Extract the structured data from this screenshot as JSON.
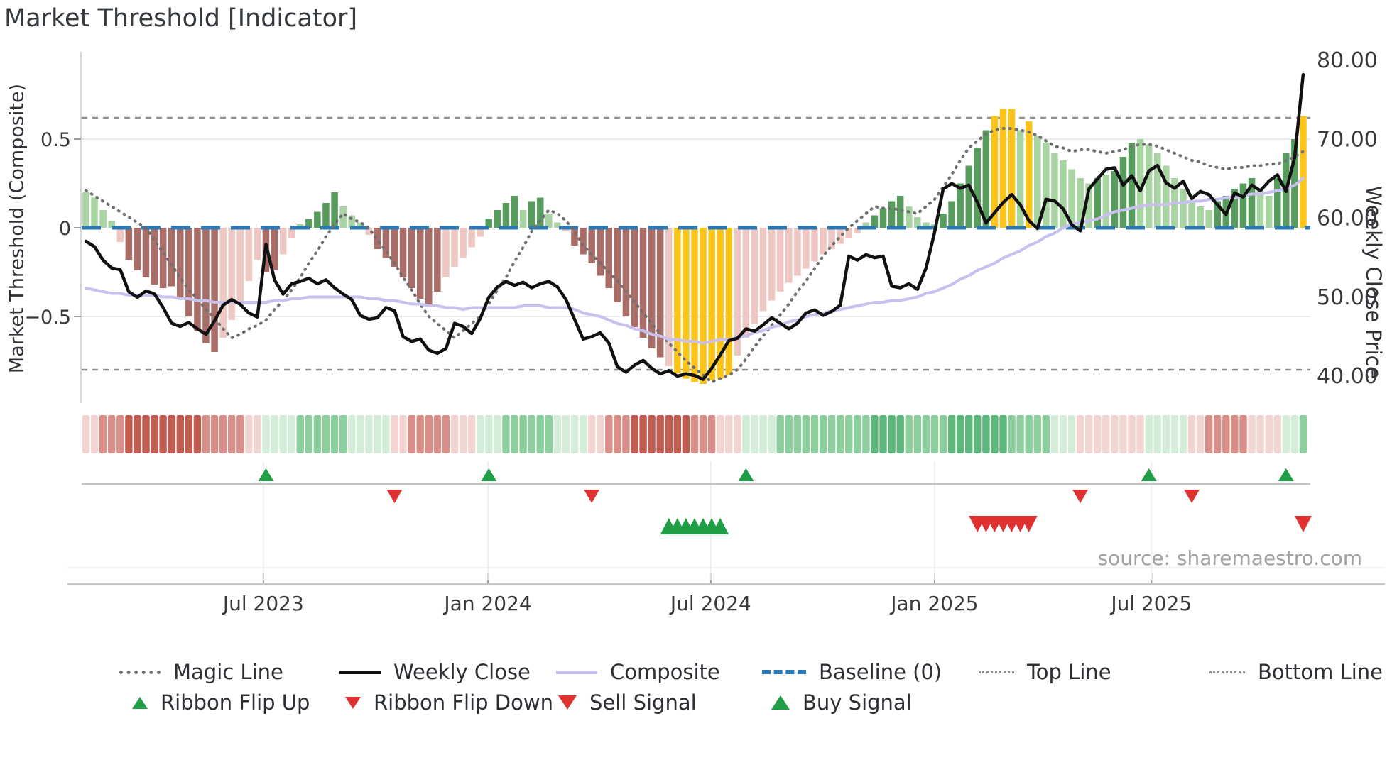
{
  "title": "Market Threshold [Indicator]",
  "source": "source: sharemaestro.com",
  "axes": {
    "left_label": "Market Threshold (Composite)",
    "right_label": "Weekly Close Price",
    "left_ticks": [
      {
        "label": "0.5",
        "value": 0.5
      },
      {
        "label": "0",
        "value": 0
      },
      {
        "label": "−0.5",
        "value": -0.5
      }
    ],
    "right_ticks": [
      {
        "label": "80.00",
        "value": 80
      },
      {
        "label": "70.00",
        "value": 70
      },
      {
        "label": "60.00",
        "value": 60
      },
      {
        "label": "50.00",
        "value": 50
      },
      {
        "label": "40.00",
        "value": 40
      }
    ],
    "x_ticks": [
      {
        "label": "Jul 2023",
        "week": 20.7
      },
      {
        "label": "Jan 2024",
        "week": 46.9
      },
      {
        "label": "Jul 2024",
        "week": 72.9
      },
      {
        "label": "Jan 2025",
        "week": 99.0
      },
      {
        "label": "Jul 2025",
        "week": 124.3
      }
    ]
  },
  "colors": {
    "bar": {
      "G": "#a7d4a1",
      "D": "#579c5c",
      "P": "#eec7c3",
      "R": "#ab6d68",
      "Y": "#fcc419"
    },
    "ribbon": {
      "-3": "#c25b50",
      "-2": "#d98f87",
      "-1": "#f2d4d1",
      "1": "#d3edd8",
      "2": "#8ccf9d",
      "3": "#5cb87b"
    },
    "weekly_close": "#111111",
    "composite_line": "#c8c0ee",
    "magic_line": "#6f6f6f",
    "baseline": "#2a7ab8",
    "top_bottom": "#8f8f8f",
    "flip_up": "#1f9e45",
    "flip_down": "#e03131",
    "buy": "#1f9e45",
    "sell": "#e03131",
    "grid": "#e9ecef"
  },
  "chart_data": {
    "type": "mixed bar+line, dual axis, weekly",
    "title": "Market Threshold [Indicator]",
    "n_weeks": 143,
    "ylim_composite": [
      -0.95,
      0.95
    ],
    "ylim_price": [
      38,
      81
    ],
    "reference_lines": {
      "baseline": 0,
      "top_line": 0.62,
      "bottom_line": -0.8
    },
    "legend_position": "bottom",
    "grid": "horizontal at ±0.5 only",
    "series": [
      {
        "name": "Threshold Bars",
        "type": "bar",
        "axis": "composite",
        "values": [
          0.2,
          0.17,
          0.1,
          0.04,
          -0.08,
          -0.18,
          -0.24,
          -0.28,
          -0.32,
          -0.34,
          -0.33,
          -0.4,
          -0.5,
          -0.58,
          -0.65,
          -0.7,
          -0.62,
          -0.52,
          -0.42,
          -0.3,
          -0.18,
          -0.25,
          -0.24,
          -0.15,
          -0.06,
          0.02,
          0.05,
          0.09,
          0.14,
          0.2,
          0.12,
          0.07,
          0.03,
          -0.04,
          -0.12,
          -0.17,
          -0.22,
          -0.28,
          -0.34,
          -0.4,
          -0.44,
          -0.36,
          -0.28,
          -0.22,
          -0.17,
          -0.11,
          -0.05,
          0.05,
          0.1,
          0.14,
          0.18,
          0.1,
          0.15,
          0.17,
          0.08,
          0.03,
          -0.02,
          -0.1,
          -0.15,
          -0.2,
          -0.27,
          -0.34,
          -0.42,
          -0.5,
          -0.56,
          -0.62,
          -0.68,
          -0.73,
          -0.78,
          -0.82,
          -0.85,
          -0.87,
          -0.88,
          -0.86,
          -0.85,
          -0.83,
          -0.72,
          -0.62,
          -0.54,
          -0.47,
          -0.41,
          -0.36,
          -0.31,
          -0.27,
          -0.23,
          -0.19,
          -0.15,
          -0.12,
          -0.09,
          -0.06,
          -0.03,
          0.03,
          0.07,
          0.11,
          0.15,
          0.18,
          0.12,
          0.06,
          0.03,
          0.02,
          0.08,
          0.15,
          0.25,
          0.35,
          0.45,
          0.55,
          0.63,
          0.67,
          0.67,
          0.55,
          0.6,
          0.52,
          0.48,
          0.42,
          0.38,
          0.33,
          0.28,
          0.25,
          0.28,
          0.3,
          0.32,
          0.4,
          0.48,
          0.5,
          0.47,
          0.42,
          0.35,
          0.28,
          0.22,
          0.15,
          0.12,
          0.1,
          0.15,
          0.18,
          0.22,
          0.25,
          0.28,
          0.22,
          0.18,
          0.28,
          0.42,
          0.5,
          0.63
        ],
        "color_codes": "GGGGPRRRRRRRRRRRPPPPPRRPPGDDDDGGGPRRRRRRRRPPPPPDDDDGDDGGPRRRRRRRRRRRPYYYYYYYPPPPPPPPPPPPPPPGDDDDGGGGDDDDDDYYYGYGGGGGGGDGDDDGGGGGGGGGDDDDDGGDDDY"
      },
      {
        "name": "Weekly Close",
        "type": "line",
        "axis": "price",
        "values": [
          57.0,
          56.3,
          54.6,
          53.6,
          53.4,
          50.6,
          49.9,
          50.7,
          50.3,
          48.6,
          46.6,
          46.2,
          46.7,
          45.9,
          45.2,
          46.9,
          48.9,
          49.6,
          49.0,
          47.9,
          47.4,
          56.6,
          52.1,
          50.3,
          51.6,
          51.9,
          52.3,
          51.6,
          52.1,
          51.1,
          50.3,
          49.6,
          47.6,
          47.1,
          47.3,
          48.6,
          48.2,
          44.9,
          44.3,
          44.6,
          43.2,
          42.8,
          43.4,
          46.6,
          46.2,
          45.3,
          47.2,
          49.9,
          51.2,
          51.9,
          51.4,
          51.8,
          51.1,
          51.6,
          51.9,
          51.2,
          49.6,
          47.1,
          44.6,
          44.9,
          45.4,
          44.1,
          41.1,
          40.4,
          41.3,
          41.9,
          40.9,
          40.2,
          40.6,
          39.9,
          40.2,
          40.0,
          39.5,
          40.9,
          42.6,
          44.4,
          44.7,
          45.9,
          45.6,
          46.4,
          47.3,
          46.6,
          45.9,
          46.6,
          47.9,
          48.3,
          47.6,
          48.1,
          48.9,
          55.1,
          54.6,
          55.3,
          54.9,
          55.1,
          51.3,
          51.1,
          51.6,
          50.9,
          53.6,
          58.1,
          63.6,
          64.3,
          63.7,
          64.1,
          61.9,
          59.3,
          60.6,
          61.9,
          62.9,
          61.6,
          59.6,
          58.6,
          62.3,
          62.1,
          61.1,
          59.1,
          58.3,
          63.6,
          64.9,
          66.1,
          66.3,
          64.1,
          65.3,
          63.4,
          65.9,
          66.6,
          64.4,
          63.7,
          64.6,
          62.4,
          63.3,
          62.9,
          61.6,
          60.4,
          63.1,
          62.6,
          64.1,
          63.4,
          64.6,
          65.4,
          63.3,
          67.6,
          78.1
        ]
      },
      {
        "name": "Composite",
        "type": "line",
        "axis": "composite",
        "values": [
          -0.34,
          -0.35,
          -0.36,
          -0.37,
          -0.37,
          -0.38,
          -0.38,
          -0.38,
          -0.38,
          -0.39,
          -0.39,
          -0.4,
          -0.4,
          -0.41,
          -0.41,
          -0.42,
          -0.42,
          -0.42,
          -0.42,
          -0.42,
          -0.42,
          -0.42,
          -0.41,
          -0.41,
          -0.4,
          -0.4,
          -0.39,
          -0.39,
          -0.39,
          -0.39,
          -0.39,
          -0.39,
          -0.39,
          -0.4,
          -0.4,
          -0.41,
          -0.41,
          -0.42,
          -0.43,
          -0.43,
          -0.44,
          -0.44,
          -0.45,
          -0.45,
          -0.46,
          -0.45,
          -0.45,
          -0.45,
          -0.45,
          -0.45,
          -0.45,
          -0.44,
          -0.44,
          -0.44,
          -0.45,
          -0.45,
          -0.45,
          -0.46,
          -0.48,
          -0.49,
          -0.5,
          -0.52,
          -0.54,
          -0.55,
          -0.57,
          -0.58,
          -0.6,
          -0.61,
          -0.63,
          -0.63,
          -0.64,
          -0.64,
          -0.65,
          -0.64,
          -0.63,
          -0.63,
          -0.62,
          -0.61,
          -0.59,
          -0.58,
          -0.56,
          -0.55,
          -0.53,
          -0.52,
          -0.5,
          -0.49,
          -0.48,
          -0.47,
          -0.46,
          -0.45,
          -0.44,
          -0.43,
          -0.42,
          -0.42,
          -0.41,
          -0.41,
          -0.4,
          -0.39,
          -0.37,
          -0.36,
          -0.34,
          -0.32,
          -0.29,
          -0.27,
          -0.24,
          -0.22,
          -0.2,
          -0.17,
          -0.15,
          -0.13,
          -0.1,
          -0.08,
          -0.05,
          -0.03,
          0.0,
          0.02,
          0.03,
          0.04,
          0.05,
          0.07,
          0.09,
          0.1,
          0.11,
          0.12,
          0.13,
          0.13,
          0.13,
          0.14,
          0.14,
          0.15,
          0.15,
          0.16,
          0.16,
          0.17,
          0.17,
          0.18,
          0.19,
          0.19,
          0.2,
          0.21,
          0.22,
          0.24,
          0.28
        ]
      },
      {
        "name": "Magic Line",
        "type": "line",
        "axis": "composite",
        "values": [
          0.21,
          0.18,
          0.15,
          0.12,
          0.09,
          0.06,
          0.03,
          0.0,
          -0.07,
          -0.14,
          -0.21,
          -0.28,
          -0.35,
          -0.4,
          -0.46,
          -0.51,
          -0.57,
          -0.62,
          -0.6,
          -0.57,
          -0.55,
          -0.52,
          -0.46,
          -0.41,
          -0.35,
          -0.28,
          -0.2,
          -0.13,
          -0.05,
          0.02,
          0.08,
          0.05,
          0.03,
          0.0,
          -0.07,
          -0.13,
          -0.2,
          -0.28,
          -0.35,
          -0.43,
          -0.5,
          -0.54,
          -0.58,
          -0.62,
          -0.58,
          -0.54,
          -0.5,
          -0.43,
          -0.35,
          -0.28,
          -0.19,
          -0.11,
          -0.02,
          0.04,
          0.1,
          0.08,
          0.04,
          -0.02,
          -0.1,
          -0.15,
          -0.2,
          -0.25,
          -0.3,
          -0.36,
          -0.42,
          -0.48,
          -0.54,
          -0.6,
          -0.65,
          -0.7,
          -0.75,
          -0.79,
          -0.83,
          -0.87,
          -0.85,
          -0.83,
          -0.8,
          -0.74,
          -0.67,
          -0.61,
          -0.55,
          -0.49,
          -0.43,
          -0.36,
          -0.3,
          -0.23,
          -0.16,
          -0.1,
          -0.05,
          0.0,
          0.04,
          0.08,
          0.12,
          0.11,
          0.11,
          0.1,
          0.09,
          0.08,
          0.12,
          0.16,
          0.23,
          0.3,
          0.38,
          0.45,
          0.49,
          0.53,
          0.55,
          0.56,
          0.56,
          0.55,
          0.54,
          0.52,
          0.49,
          0.46,
          0.45,
          0.43,
          0.44,
          0.44,
          0.43,
          0.42,
          0.43,
          0.44,
          0.46,
          0.47,
          0.47,
          0.46,
          0.44,
          0.42,
          0.4,
          0.38,
          0.37,
          0.35,
          0.34,
          0.33,
          0.34,
          0.34,
          0.35,
          0.35,
          0.36,
          0.36,
          0.38,
          0.4,
          0.43
        ]
      }
    ],
    "ribbon_intensity": [
      -1,
      -1,
      -2,
      -2,
      -2,
      -3,
      -3,
      -3,
      -3,
      -3,
      -3,
      -3,
      -3,
      -3,
      -2,
      -2,
      -2,
      -2,
      -2,
      -1,
      -1,
      1,
      1,
      1,
      1,
      2,
      2,
      2,
      2,
      2,
      2,
      1,
      1,
      1,
      1,
      1,
      -1,
      -1,
      -2,
      -2,
      -2,
      -2,
      -2,
      -1,
      -1,
      -1,
      1,
      1,
      1,
      2,
      2,
      2,
      2,
      2,
      2,
      1,
      1,
      1,
      1,
      -1,
      -1,
      -2,
      -2,
      -2,
      -3,
      -3,
      -3,
      -3,
      -3,
      -3,
      -3,
      -2,
      -2,
      -2,
      -1,
      -1,
      -1,
      1,
      1,
      1,
      1,
      2,
      2,
      2,
      2,
      2,
      2,
      2,
      2,
      2,
      2,
      2,
      3,
      3,
      3,
      3,
      2,
      2,
      2,
      2,
      2,
      3,
      3,
      3,
      3,
      3,
      3,
      3,
      2,
      2,
      2,
      2,
      2,
      1,
      1,
      1,
      -1,
      -1,
      -1,
      -1,
      -1,
      -1,
      -1,
      -1,
      1,
      1,
      1,
      1,
      1,
      -1,
      -1,
      -2,
      -2,
      -2,
      -2,
      -2,
      -1,
      -1,
      -1,
      -1,
      1,
      1,
      2
    ],
    "signals": {
      "ribbon_flip_up_weeks": [
        21,
        47,
        77,
        124,
        140
      ],
      "ribbon_flip_down_weeks": [
        36,
        59,
        116,
        129
      ],
      "buy_signal_weeks": [
        68,
        69,
        70,
        71,
        72,
        73,
        74
      ],
      "sell_signal_weeks": [
        104,
        105,
        106,
        107,
        108,
        109,
        110,
        142
      ]
    }
  },
  "legend": {
    "rows": [
      [
        {
          "label": "Magic Line",
          "swatch": "dotted-gray"
        },
        {
          "label": "Weekly Close",
          "swatch": "solid-black"
        },
        {
          "label": "Composite",
          "swatch": "solid-purple"
        },
        {
          "label": "Baseline (0)",
          "swatch": "dashed-blue"
        },
        {
          "label": "Top Line",
          "swatch": "dotted-thin"
        },
        {
          "label": "Bottom Line",
          "swatch": "dotted-thin"
        }
      ],
      [
        {
          "label": "Ribbon Flip Up",
          "swatch": "tri-up-green"
        },
        {
          "label": "Ribbon Flip Down",
          "swatch": "tri-down-red"
        },
        {
          "label": "Sell Signal",
          "swatch": "tri-down-red-big"
        },
        {
          "label": "Buy Signal",
          "swatch": "tri-up-green-big"
        }
      ]
    ]
  }
}
